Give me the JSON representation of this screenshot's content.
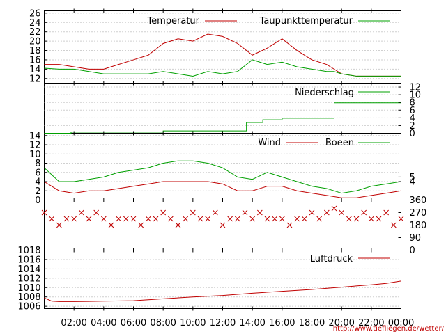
{
  "footer_url": "http://www.tiefliegen.de/wetter/",
  "x_ticks": [
    "02:00",
    "04:00",
    "06:00",
    "08:00",
    "10:00",
    "12:00",
    "14:00",
    "16:00",
    "18:00",
    "20:00",
    "22:00",
    "00:00"
  ],
  "colors": {
    "red": "#c00000",
    "green": "#00a000",
    "olive": "#806000"
  },
  "chart_data": [
    {
      "type": "line",
      "panel": "temperature",
      "x_unit": "hours",
      "xlim": [
        0,
        24
      ],
      "ylim": [
        11,
        26.5
      ],
      "y_ticks": [
        12,
        14,
        16,
        18,
        20,
        22,
        24,
        26
      ],
      "grid": true,
      "legend_position": "top-right",
      "series": [
        {
          "name": "Temperatur",
          "color": "#c00000",
          "x": [
            0,
            1,
            2,
            3,
            4,
            5,
            6,
            7,
            8,
            9,
            10,
            11,
            12,
            13,
            14,
            15,
            16,
            17,
            18,
            19,
            19.5,
            20,
            21,
            22,
            23,
            24
          ],
          "y": [
            15,
            15,
            14.5,
            14,
            14,
            15,
            16,
            17,
            19.5,
            20.5,
            20,
            21.5,
            21,
            19.5,
            17,
            18.5,
            20.5,
            18,
            16,
            15,
            14,
            13,
            12.5,
            12.5,
            12.5,
            12.5
          ]
        },
        {
          "name": "Taupunkttemperatur",
          "color": "#00a000",
          "x": [
            0,
            1,
            2,
            3,
            4,
            5,
            6,
            7,
            8,
            9,
            10,
            11,
            12,
            13,
            14,
            15,
            16,
            17,
            18,
            19,
            19.5,
            20,
            21,
            22,
            23,
            24
          ],
          "y": [
            14.2,
            14,
            14,
            13.5,
            13,
            13,
            13,
            13,
            13.5,
            13,
            12.5,
            13.5,
            13,
            13.5,
            16,
            15,
            15.5,
            14.5,
            14,
            13.5,
            13.5,
            13,
            12.5,
            12.5,
            12.5,
            12.5
          ]
        }
      ]
    },
    {
      "type": "line",
      "panel": "precipitation",
      "x_unit": "hours",
      "xlim": [
        0,
        24
      ],
      "ylim": [
        0,
        13
      ],
      "y_ticks_right": [
        0,
        2,
        4,
        6,
        8,
        10,
        12
      ],
      "grid": true,
      "legend_position": "top-right",
      "series": [
        {
          "name": "Niederschlag",
          "color": "#00a000",
          "step": true,
          "x": [
            0,
            1.8,
            8,
            13.5,
            13.6,
            14.7,
            16,
            19.5,
            24
          ],
          "y": [
            0,
            0.3,
            0.6,
            0.6,
            2.8,
            3.5,
            3.9,
            7.9,
            7.9
          ]
        }
      ]
    },
    {
      "type": "line",
      "panel": "wind",
      "x_unit": "hours",
      "xlim": [
        0,
        24
      ],
      "ylim": [
        0,
        14.5
      ],
      "y_ticks": [
        0,
        2,
        4,
        6,
        8,
        10,
        12,
        14
      ],
      "y_ticks_right": [
        4,
        5
      ],
      "grid": true,
      "legend_position": "top-right",
      "series": [
        {
          "name": "Wind",
          "color": "#c00000",
          "x": [
            0,
            1,
            2,
            3,
            4,
            5,
            6,
            7,
            8,
            9,
            10,
            11,
            12,
            13,
            14,
            15,
            16,
            17,
            18,
            19,
            20,
            21,
            22,
            23,
            24
          ],
          "y": [
            4,
            2,
            1.5,
            2,
            2,
            2.5,
            3,
            3.5,
            4,
            4,
            4,
            4,
            3.5,
            2,
            2,
            3,
            3,
            2,
            1.5,
            1,
            0.5,
            0.5,
            1,
            1.5,
            2
          ]
        },
        {
          "name": "Boeen",
          "color": "#00a000",
          "x": [
            0,
            1,
            2,
            3,
            4,
            5,
            6,
            7,
            8,
            9,
            10,
            11,
            12,
            13,
            14,
            15,
            16,
            17,
            18,
            19,
            20,
            21,
            22,
            23,
            24
          ],
          "y": [
            7,
            4,
            4,
            4.5,
            5,
            6,
            6.5,
            7,
            8,
            8.5,
            8.5,
            8,
            7,
            5,
            4.5,
            6,
            5,
            4,
            3,
            2.5,
            1.5,
            2,
            3,
            3.5,
            4
          ]
        }
      ]
    },
    {
      "type": "scatter",
      "panel": "wind_direction",
      "x_unit": "hours",
      "xlim": [
        0,
        24
      ],
      "ylim": [
        0,
        360
      ],
      "y_ticks_right": [
        0,
        90,
        180,
        270,
        360
      ],
      "marker": "x",
      "color": "#c00000",
      "x": [
        0,
        0.5,
        1,
        1.5,
        2,
        2.5,
        3,
        3.5,
        4,
        4.5,
        5,
        5.5,
        6,
        6.5,
        7,
        7.5,
        8,
        8.5,
        9,
        9.5,
        10,
        10.5,
        11,
        11.5,
        12,
        12.5,
        13,
        13.5,
        14,
        14.5,
        15,
        15.5,
        16,
        16.5,
        17,
        17.5,
        18,
        18.5,
        19,
        19.5,
        20,
        20.5,
        21,
        21.5,
        22,
        22.5,
        23,
        23.5,
        24
      ],
      "y": [
        270,
        225,
        180,
        225,
        225,
        270,
        225,
        270,
        225,
        180,
        225,
        225,
        225,
        180,
        225,
        225,
        270,
        225,
        180,
        225,
        270,
        225,
        225,
        270,
        180,
        225,
        225,
        270,
        225,
        270,
        225,
        225,
        225,
        180,
        225,
        225,
        270,
        225,
        270,
        300,
        270,
        225,
        225,
        270,
        225,
        225,
        270,
        180,
        225
      ]
    },
    {
      "type": "line",
      "panel": "pressure",
      "x_unit": "hours",
      "xlim": [
        0,
        24
      ],
      "ylim": [
        1005.5,
        1018
      ],
      "y_ticks": [
        1006,
        1008,
        1010,
        1012,
        1014,
        1016,
        1018
      ],
      "grid": true,
      "legend_position": "top-right",
      "series": [
        {
          "name": "Luftdruck",
          "color": "#c00000",
          "x": [
            0,
            0.5,
            1,
            2,
            4,
            6,
            8,
            10,
            12,
            14,
            16,
            18,
            20,
            22,
            23,
            24
          ],
          "y": [
            1007.8,
            1007.1,
            1007,
            1007,
            1007.1,
            1007.2,
            1007.6,
            1008,
            1008.3,
            1008.8,
            1009.2,
            1009.6,
            1010.1,
            1010.6,
            1010.9,
            1011.4
          ]
        }
      ]
    }
  ]
}
